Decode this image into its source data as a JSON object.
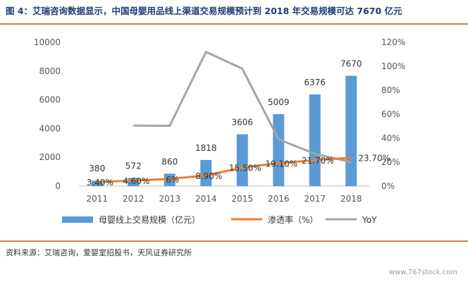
{
  "header": {
    "title": "图 4：艾瑞咨询数据显示，中国母婴用品线上渠道交易规模预计到 2018 年交易规模可达 7670 亿元"
  },
  "footer": {
    "source": "资料来源：艾瑞咨询，爱婴室招股书，天风证券研究所",
    "watermark": "www.767stock.com"
  },
  "colors": {
    "accent_rule": "#e87e2b",
    "title": "#1f3b73",
    "bar": "#5b9bd5",
    "penetration_line": "#ed7d31",
    "yoy_line": "#a5a5a5"
  },
  "chart_data": {
    "type": "bar",
    "categories": [
      "2011",
      "2012",
      "2013",
      "2014",
      "2015",
      "2016",
      "2017",
      "2018"
    ],
    "series": [
      {
        "name": "母婴线上交易规模（亿元）",
        "type": "bar",
        "axis": "left",
        "values": [
          380,
          572,
          860,
          1818,
          3606,
          5009,
          6376,
          7670
        ],
        "labels": [
          "380",
          "572",
          "860",
          "1818",
          "3606",
          "5009",
          "6376",
          "7670"
        ]
      },
      {
        "name": "渗透率（%）",
        "type": "line",
        "axis": "right",
        "values": [
          3.4,
          4.6,
          6.0,
          8.9,
          15.5,
          19.1,
          21.7,
          23.7
        ],
        "labels": [
          "3.40%",
          "4.60%",
          "6%",
          "8.90%",
          "15.50%",
          "19.10%",
          "21.70%",
          "23.70%"
        ]
      },
      {
        "name": "YoY",
        "type": "line",
        "axis": "right",
        "values": [
          null,
          50.5,
          50.3,
          112,
          98,
          39,
          27,
          20
        ]
      }
    ],
    "y_left": {
      "min": 0,
      "max": 10000,
      "ticks": [
        "0",
        "2000",
        "4000",
        "6000",
        "8000",
        "10000"
      ]
    },
    "y_right": {
      "min": 0,
      "max": 120,
      "ticks": [
        "0%",
        "20%",
        "40%",
        "60%",
        "80%",
        "100%",
        "120%"
      ]
    },
    "grid": false,
    "legend_position": "bottom",
    "legend": [
      "母婴线上交易规模（亿元）",
      "渗透率（%）",
      "YoY"
    ]
  }
}
